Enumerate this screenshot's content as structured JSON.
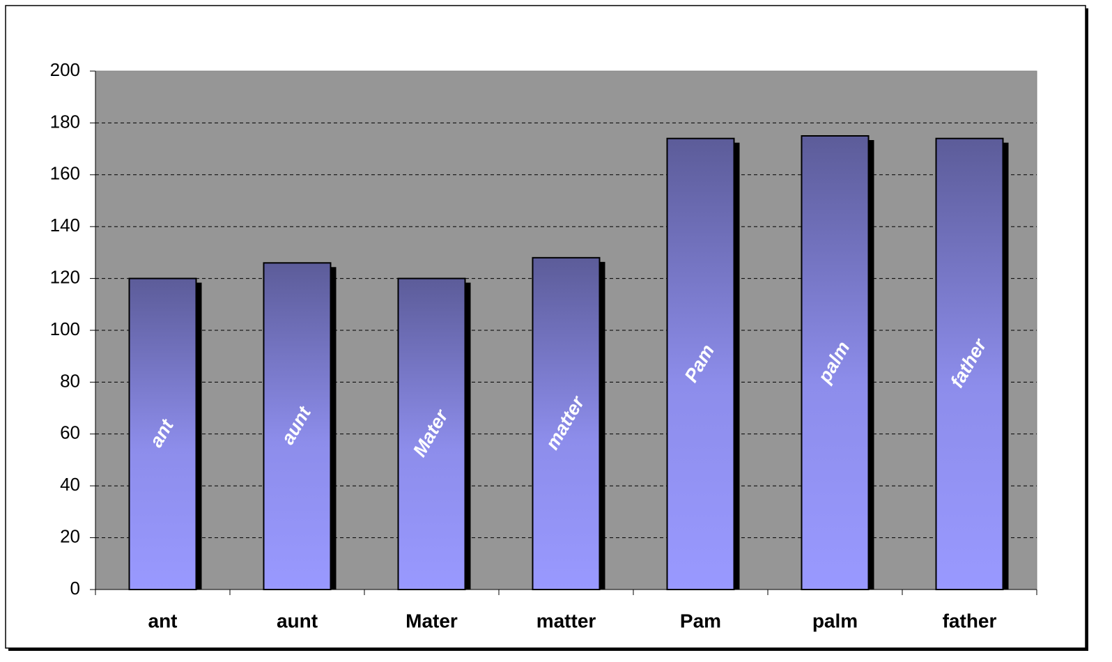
{
  "chart_data": {
    "type": "bar",
    "categories": [
      "ant",
      "aunt",
      "Mater",
      "matter",
      "Pam",
      "palm",
      "father"
    ],
    "values": [
      120,
      126,
      120,
      128,
      174,
      175,
      174
    ],
    "color": "#9999ff",
    "ylim": [
      0,
      200
    ],
    "yticks": [
      0,
      20,
      40,
      60,
      80,
      100,
      120,
      140,
      160,
      180,
      200
    ],
    "grid": true
  }
}
